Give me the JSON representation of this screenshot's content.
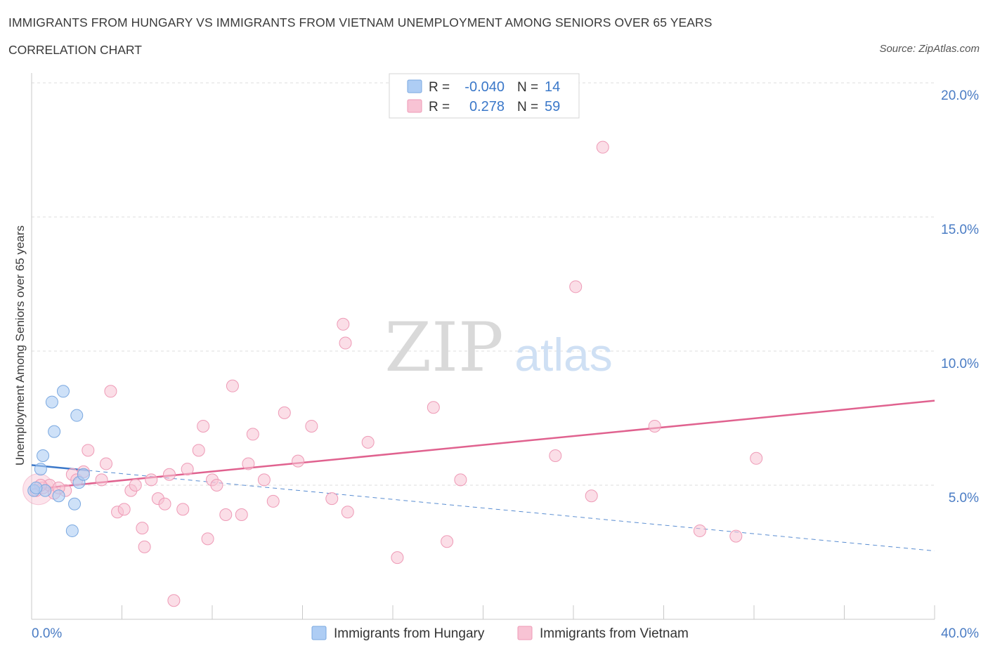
{
  "header": {
    "title": "IMMIGRANTS FROM HUNGARY VS IMMIGRANTS FROM VIETNAM UNEMPLOYMENT AMONG SENIORS OVER 65 YEARS",
    "subtitle": "CORRELATION CHART",
    "source": "Source: ZipAtlas.com"
  },
  "watermark": {
    "zip": "ZIP",
    "atlas": "atlas"
  },
  "colors": {
    "hungary_fill": "#aecdf4",
    "hungary_stroke": "#7aa8e0",
    "hungary_line": "#3b78c9",
    "vietnam_fill": "#f8c3d4",
    "vietnam_stroke": "#ee9ab6",
    "vietnam_line": "#e0628f",
    "axis_label": "#4a7cc4",
    "grid": "#dcdcdc"
  },
  "stats_legend": {
    "rows": [
      {
        "series": "hungary",
        "r_label": "R =",
        "r_value": "-0.040",
        "n_label": "N =",
        "n_value": "14"
      },
      {
        "series": "vietnam",
        "r_label": "R =",
        "r_value": "0.278",
        "n_label": "N =",
        "n_value": "59"
      }
    ]
  },
  "chart_data": {
    "type": "scatter",
    "title": "IMMIGRANTS FROM HUNGARY VS IMMIGRANTS FROM VIETNAM UNEMPLOYMENT AMONG SENIORS OVER 65 YEARS",
    "xlabel": "",
    "ylabel": "Unemployment Among Seniors over 65 years",
    "xlim": [
      0,
      40
    ],
    "ylim": [
      0,
      20
    ],
    "x_tick_labels": [
      "0.0%",
      "40.0%"
    ],
    "y_ticks": [
      5,
      10,
      15,
      20
    ],
    "y_tick_labels": [
      "5.0%",
      "10.0%",
      "15.0%",
      "20.0%"
    ],
    "grid": true,
    "series": [
      {
        "name": "Immigrants from Hungary",
        "key": "hungary",
        "points": [
          [
            0.1,
            4.8
          ],
          [
            0.4,
            5.6
          ],
          [
            0.5,
            6.1
          ],
          [
            0.6,
            4.8
          ],
          [
            0.9,
            8.1
          ],
          [
            1.0,
            7.0
          ],
          [
            1.2,
            4.6
          ],
          [
            1.4,
            8.5
          ],
          [
            1.8,
            3.3
          ],
          [
            1.9,
            4.3
          ],
          [
            2.0,
            7.6
          ],
          [
            2.1,
            5.1
          ],
          [
            2.3,
            5.4
          ],
          [
            0.2,
            4.9
          ]
        ],
        "trend": {
          "x": [
            0,
            2.5
          ],
          "y": [
            5.75,
            5.55
          ],
          "dashed_extension": {
            "x": [
              2.5,
              40
            ],
            "y": [
              5.55,
              2.55
            ]
          }
        }
      },
      {
        "name": "Immigrants from Vietnam",
        "key": "vietnam",
        "points": [
          [
            0.2,
            4.8
          ],
          [
            0.5,
            4.9
          ],
          [
            0.8,
            5.0
          ],
          [
            1.0,
            4.7
          ],
          [
            1.5,
            4.8
          ],
          [
            1.8,
            5.4
          ],
          [
            2.0,
            5.2
          ],
          [
            2.3,
            5.5
          ],
          [
            2.5,
            6.3
          ],
          [
            3.1,
            5.2
          ],
          [
            3.3,
            5.8
          ],
          [
            3.5,
            8.5
          ],
          [
            3.8,
            4.0
          ],
          [
            4.1,
            4.1
          ],
          [
            4.4,
            4.8
          ],
          [
            4.6,
            5.0
          ],
          [
            4.9,
            3.4
          ],
          [
            5.0,
            2.7
          ],
          [
            5.3,
            5.2
          ],
          [
            5.6,
            4.5
          ],
          [
            5.9,
            4.3
          ],
          [
            6.1,
            5.4
          ],
          [
            6.3,
            0.7
          ],
          [
            6.7,
            4.1
          ],
          [
            6.9,
            5.6
          ],
          [
            7.4,
            6.3
          ],
          [
            7.6,
            7.2
          ],
          [
            7.8,
            3.0
          ],
          [
            8.0,
            5.2
          ],
          [
            8.2,
            5.0
          ],
          [
            8.6,
            3.9
          ],
          [
            8.9,
            8.7
          ],
          [
            9.3,
            3.9
          ],
          [
            9.6,
            5.8
          ],
          [
            9.8,
            6.9
          ],
          [
            10.3,
            5.2
          ],
          [
            10.7,
            4.4
          ],
          [
            11.2,
            7.7
          ],
          [
            11.8,
            5.9
          ],
          [
            12.4,
            7.2
          ],
          [
            13.3,
            4.5
          ],
          [
            13.8,
            11.0
          ],
          [
            13.9,
            10.3
          ],
          [
            14.0,
            4.0
          ],
          [
            14.9,
            6.6
          ],
          [
            16.2,
            2.3
          ],
          [
            17.8,
            7.9
          ],
          [
            18.4,
            2.9
          ],
          [
            19.0,
            5.2
          ],
          [
            23.2,
            6.1
          ],
          [
            24.1,
            12.4
          ],
          [
            24.8,
            4.6
          ],
          [
            25.3,
            17.6
          ],
          [
            27.6,
            7.2
          ],
          [
            29.6,
            3.3
          ],
          [
            31.2,
            3.1
          ],
          [
            32.1,
            6.0
          ],
          [
            1.2,
            4.9
          ],
          [
            0.4,
            5.0
          ]
        ],
        "trend": {
          "x": [
            0,
            40
          ],
          "y": [
            4.85,
            8.15
          ]
        }
      }
    ],
    "legend": [
      "Immigrants from Hungary",
      "Immigrants from Vietnam"
    ]
  }
}
